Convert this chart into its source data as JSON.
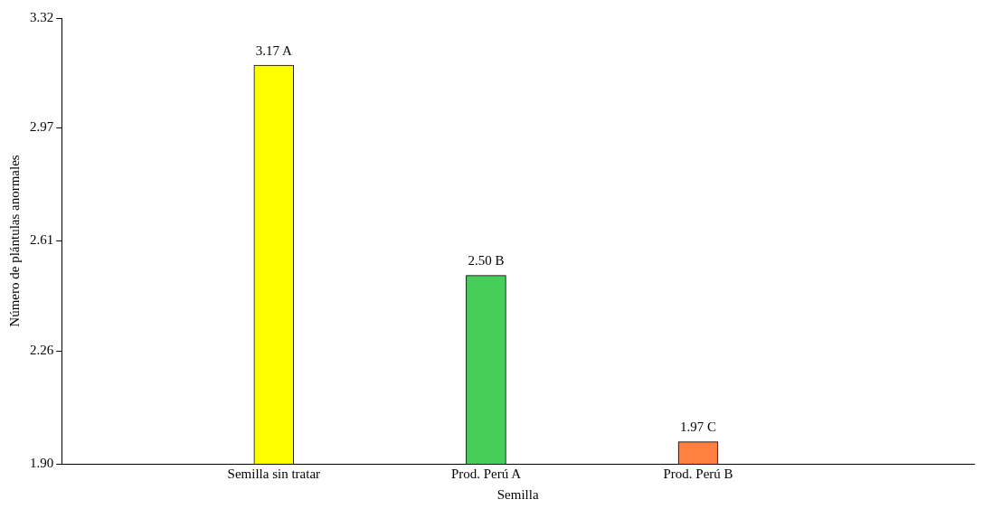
{
  "chart_data": {
    "type": "bar",
    "xlabel": "Semilla",
    "ylabel": "Número de plántulas anormales",
    "categories": [
      "Semilla sin tratar",
      "Prod. Perú A",
      "Prod. Perú B"
    ],
    "values": [
      3.17,
      2.5,
      1.97
    ],
    "colors": [
      "#ffff00",
      "#47cd5a",
      "#ff8040"
    ],
    "value_labels": [
      "3.17 A",
      "2.50 B",
      "1.97 C"
    ],
    "ylim": [
      1.9,
      3.32
    ],
    "yticks": [
      {
        "value": 1.9,
        "label": "1.90"
      },
      {
        "value": 2.26,
        "label": "2.26"
      },
      {
        "value": 2.61,
        "label": "2.61"
      },
      {
        "value": 2.97,
        "label": "2.97"
      },
      {
        "value": 3.32,
        "label": "3.32"
      }
    ],
    "grid": false,
    "legend": false
  }
}
